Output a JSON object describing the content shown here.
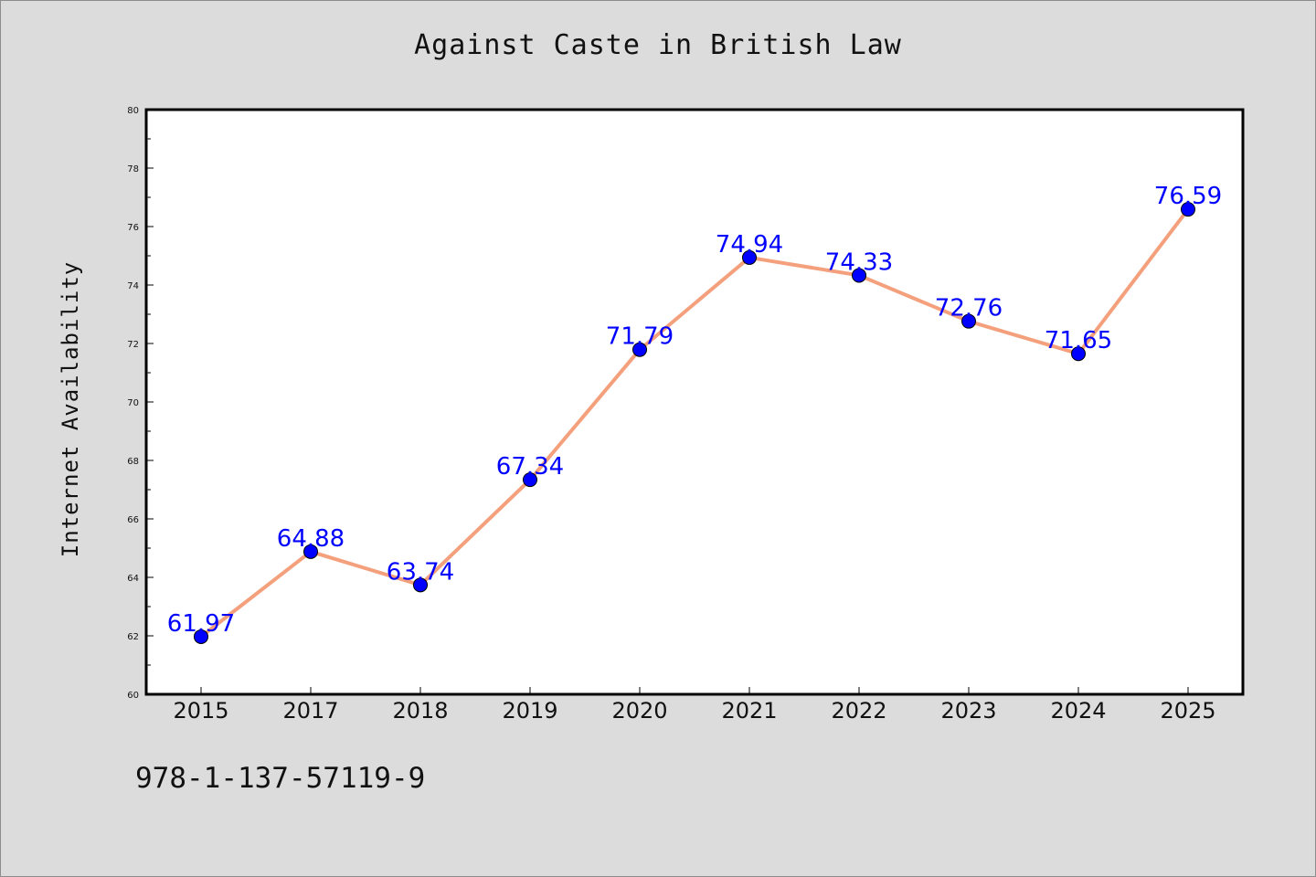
{
  "chart_data": {
    "type": "line",
    "title": "Against Caste in British Law",
    "xlabel": "",
    "ylabel": "Internet Availability",
    "categories": [
      "2015",
      "2017",
      "2018",
      "2019",
      "2020",
      "2021",
      "2022",
      "2023",
      "2024",
      "2025"
    ],
    "series": [
      {
        "values": [
          61.97,
          64.88,
          63.74,
          67.34,
          71.79,
          74.94,
          74.33,
          72.76,
          71.65,
          76.59
        ]
      }
    ],
    "data_labels": [
      "61.97",
      "64.88",
      "63.74",
      "67.34",
      "71.79",
      "74.94",
      "74.33",
      "72.76",
      "71.65",
      "76.59"
    ],
    "ylim": [
      60,
      80
    ],
    "yticks": [
      "60",
      "62",
      "64",
      "66",
      "68",
      "70",
      "72",
      "74",
      "76",
      "78",
      "80"
    ],
    "grid": false,
    "colors": {
      "line": "#f4a07c",
      "marker": "#0000ff",
      "label": "#0000ff",
      "background": "#dcdcdc",
      "plot_background": "#ffffff"
    }
  },
  "footer_text": "978-1-137-57119-9"
}
